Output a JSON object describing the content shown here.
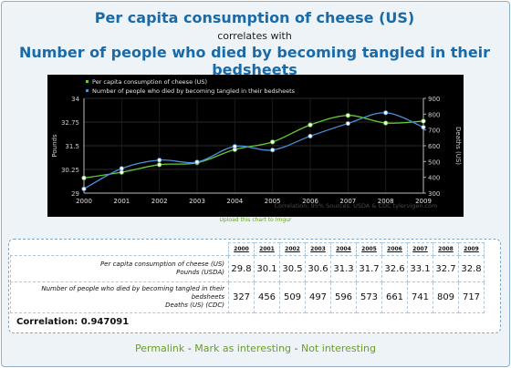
{
  "header": {
    "title_1": "Per capita consumption of cheese (US)",
    "connector": "correlates with",
    "title_2": "Number of people who died by becoming tangled in their bedsheets"
  },
  "chart_data": {
    "type": "line",
    "x": [
      2000,
      2001,
      2002,
      2003,
      2004,
      2005,
      2006,
      2007,
      2008,
      2009
    ],
    "series": [
      {
        "name": "Per capita consumption of cheese (US)",
        "axis": "left",
        "color": "#66cc33",
        "values": [
          29.8,
          30.1,
          30.5,
          30.6,
          31.3,
          31.7,
          32.6,
          33.1,
          32.7,
          32.8
        ]
      },
      {
        "name": "Number of people who died by becoming tangled in their bedsheets",
        "axis": "right",
        "color": "#4a90d9",
        "values": [
          327,
          456,
          509,
          497,
          596,
          573,
          661,
          741,
          809,
          717
        ]
      }
    ],
    "ylabel_left": "Pounds",
    "ylabel_right": "Deaths (US)",
    "ylim_left": [
      29,
      34
    ],
    "ylim_right": [
      300,
      900
    ],
    "yticks_left": [
      "34",
      "32.75",
      "31.5",
      "30.25",
      "29"
    ],
    "yticks_right": [
      "900",
      "800",
      "700",
      "600",
      "500",
      "400",
      "300"
    ],
    "xticks": [
      "2000",
      "2001",
      "2002",
      "2003",
      "2004",
      "2005",
      "2006",
      "2007",
      "2008",
      "2009"
    ],
    "legend_position": "top-left",
    "grid": true,
    "watermark": "Correlation: 95%   Sources: USDA & CDC   tylervigen.com"
  },
  "upload_link": "Upload this chart to Imgur",
  "table": {
    "years": [
      "2000",
      "2001",
      "2002",
      "2003",
      "2004",
      "2005",
      "2006",
      "2007",
      "2008",
      "2009"
    ],
    "row1_label": "Per capita consumption of cheese (US)",
    "row1_unit": "Pounds (USDA)",
    "row1_values": [
      "29.8",
      "30.1",
      "30.5",
      "30.6",
      "31.3",
      "31.7",
      "32.6",
      "33.1",
      "32.7",
      "32.8"
    ],
    "row2_label_a": "Number of people who died by becoming tangled in their",
    "row2_label_b": "bedsheets",
    "row2_unit": "Deaths (US) (CDC)",
    "row2_values": [
      "327",
      "456",
      "509",
      "497",
      "596",
      "573",
      "661",
      "741",
      "809",
      "717"
    ],
    "correlation": "Correlation: 0.947091"
  },
  "footer": {
    "permalink": "Permalink",
    "sep": " - ",
    "mark": "Mark as interesting",
    "not": "Not interesting"
  }
}
